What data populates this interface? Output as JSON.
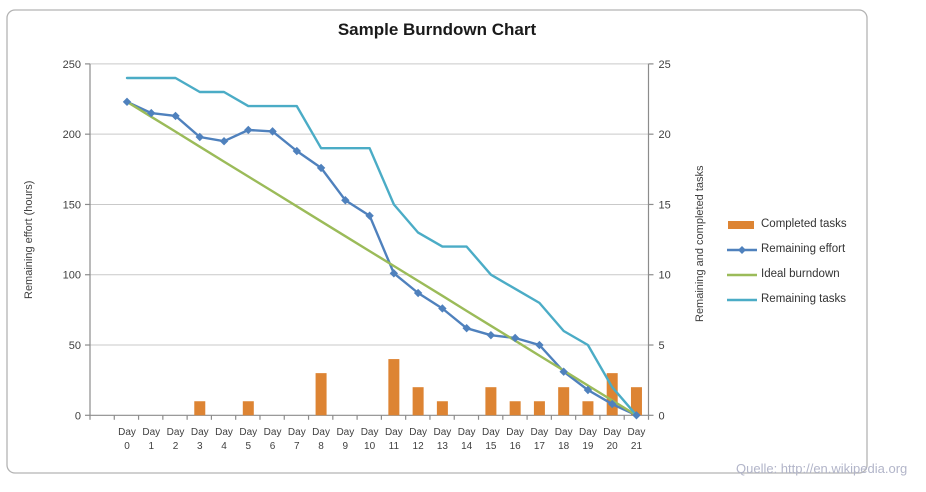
{
  "watermark": {
    "text": "Quelle: http://en.wikipedia.org"
  },
  "colors": {
    "background": "#ffffff",
    "outer_border": "#b3b3b3",
    "gridline": "#c9c9c9",
    "axis_line": "#8c8c8c",
    "tick_text": "#3f3f3f",
    "title_text": "#1a1a1a",
    "watermark_text": "#b2b5c9",
    "completed_tasks": "#dd8433",
    "remaining_effort": "#4f81bd",
    "ideal_burndown": "#9bbb59",
    "remaining_tasks": "#4bacc6"
  },
  "chart_data": {
    "type": "combo (bar + line, dual axis)",
    "title": "Sample Burndown Chart",
    "categories": [
      "Day 0",
      "Day 1",
      "Day 2",
      "Day 3",
      "Day 4",
      "Day 5",
      "Day 6",
      "Day 7",
      "Day 8",
      "Day 9",
      "Day 10",
      "Day 11",
      "Day 12",
      "Day 13",
      "Day 14",
      "Day 15",
      "Day 16",
      "Day 17",
      "Day 18",
      "Day 19",
      "Day 20",
      "Day 21"
    ],
    "series": [
      {
        "name": "Completed tasks",
        "type": "bar",
        "axis": "right",
        "color": "#dd8433",
        "values": [
          0,
          0,
          0,
          1,
          0,
          1,
          0,
          0,
          3,
          0,
          0,
          4,
          2,
          1,
          0,
          2,
          1,
          1,
          2,
          1,
          3,
          2
        ]
      },
      {
        "name": "Remaining effort",
        "type": "line",
        "marker": "diamond",
        "axis": "left",
        "color": "#4f81bd",
        "values": [
          223,
          215,
          213,
          198,
          195,
          203,
          202,
          188,
          176,
          153,
          142,
          101,
          87,
          76,
          62,
          57,
          55,
          50,
          31,
          18,
          8,
          0
        ]
      },
      {
        "name": "Ideal burndown",
        "type": "line",
        "marker": "none",
        "axis": "left",
        "color": "#9bbb59",
        "values": [
          223,
          212.4,
          201.8,
          191.1,
          180.5,
          169.9,
          159.3,
          148.7,
          138.0,
          127.4,
          116.8,
          106.2,
          95.6,
          85.0,
          74.3,
          63.7,
          53.1,
          42.5,
          31.9,
          21.2,
          10.6,
          0
        ]
      },
      {
        "name": "Remaining tasks",
        "type": "line",
        "marker": "none",
        "axis": "right",
        "color": "#4bacc6",
        "values": [
          24,
          24,
          24,
          23,
          23,
          22,
          22,
          22,
          19,
          19,
          19,
          15,
          13,
          12,
          12,
          10,
          9,
          8,
          6,
          5,
          2,
          0
        ]
      }
    ],
    "left_axis": {
      "label": "Remaining effort (hours)",
      "min": 0,
      "max": 250,
      "step": 50,
      "ticks": [
        0,
        50,
        100,
        150,
        200,
        250
      ]
    },
    "right_axis": {
      "label": "Remaining and  completed tasks",
      "min": 0,
      "max": 25,
      "step": 5,
      "ticks": [
        0,
        5,
        10,
        15,
        20,
        25
      ]
    },
    "x_axis": {
      "tick_word": "Day"
    },
    "grid": true,
    "legend_position": "right",
    "legend": [
      "Completed tasks",
      "Remaining effort",
      "Ideal burndown",
      "Remaining tasks"
    ]
  }
}
